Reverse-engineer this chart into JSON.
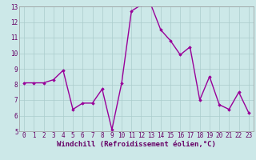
{
  "x": [
    0,
    1,
    2,
    3,
    4,
    5,
    6,
    7,
    8,
    9,
    10,
    11,
    12,
    13,
    14,
    15,
    16,
    17,
    18,
    19,
    20,
    21,
    22,
    23
  ],
  "y": [
    8.1,
    8.1,
    8.1,
    8.3,
    8.9,
    6.4,
    6.8,
    6.8,
    7.7,
    5.1,
    8.1,
    12.7,
    13.1,
    13.1,
    11.5,
    10.8,
    9.9,
    10.4,
    7.0,
    8.5,
    6.7,
    6.4,
    7.5,
    6.2
  ],
  "line_color": "#990099",
  "marker": "D",
  "marker_size": 1.8,
  "bg_color": "#cce8e8",
  "grid_color": "#aacccc",
  "xlabel": "Windchill (Refroidissement éolien,°C)",
  "xlim": [
    -0.5,
    23.5
  ],
  "ylim": [
    5,
    13
  ],
  "yticks": [
    5,
    6,
    7,
    8,
    9,
    10,
    11,
    12,
    13
  ],
  "xticks": [
    0,
    1,
    2,
    3,
    4,
    5,
    6,
    7,
    8,
    9,
    10,
    11,
    12,
    13,
    14,
    15,
    16,
    17,
    18,
    19,
    20,
    21,
    22,
    23
  ],
  "tick_fontsize": 5.5,
  "xlabel_fontsize": 6.5,
  "line_width": 1.0,
  "tick_color": "#660066",
  "label_color": "#660066"
}
